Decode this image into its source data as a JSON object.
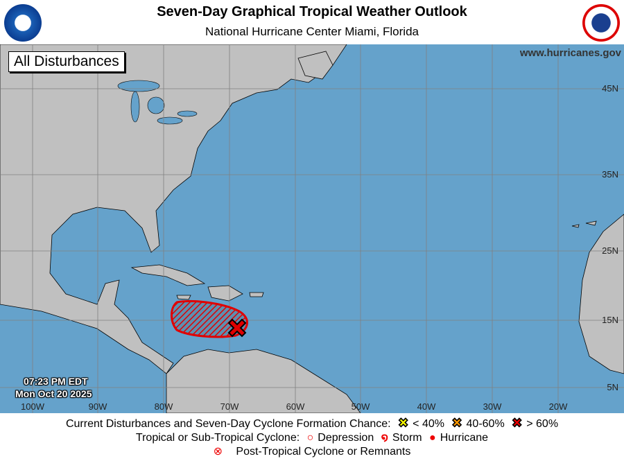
{
  "header": {
    "title": "Seven-Day Graphical Tropical Weather Outlook",
    "subtitle": "National Hurricane Center  Miami, Florida",
    "noaa_logo": "NOAA",
    "nws_logo": "NATIONAL WEATHER SERVICE"
  },
  "map": {
    "panel_label": "All Disturbances",
    "website": "www.hurricanes.gov",
    "latitudes": [
      "45N",
      "35N",
      "25N",
      "15N",
      "5N"
    ],
    "longitudes": [
      "100W",
      "90W",
      "80W",
      "70W",
      "60W",
      "50W",
      "40W",
      "30W",
      "20W"
    ],
    "timestamp": {
      "time": "07:23 PM EDT",
      "date": "Mon Oct 20 2025"
    },
    "disturbances": [
      {
        "chance_category": "> 60%",
        "color": "#e00000",
        "region": "central Caribbean Sea"
      }
    ]
  },
  "legend": {
    "row1_label": "Current Disturbances and Seven-Day Cyclone Formation Chance:",
    "low": "< 40%",
    "medium": "40-60%",
    "high": "> 60%",
    "row2_label": "Tropical or Sub-Tropical Cyclone:",
    "depression": "Depression",
    "storm": "Storm",
    "hurricane": "Hurricane",
    "row3_label": "Post-Tropical Cyclone or Remnants",
    "colors": {
      "low": "#ffff00",
      "medium": "#ff9900",
      "high": "#e00000",
      "ocean": "#65a2cb",
      "land": "#c0c0c0"
    }
  }
}
